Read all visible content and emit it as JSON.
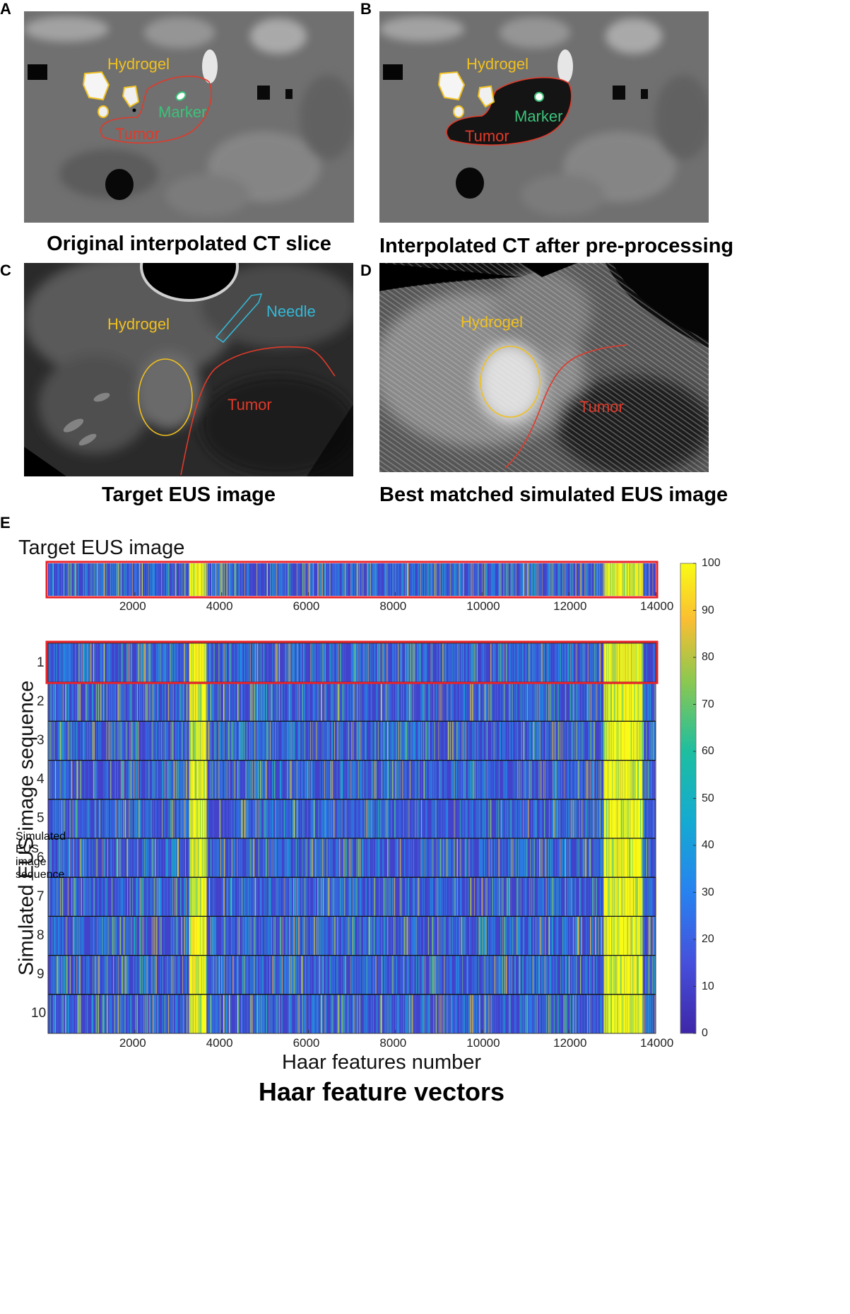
{
  "panels": {
    "A": {
      "letter": "A",
      "caption": "Original interpolated CT slice",
      "labels": {
        "hydrogel": "Hydrogel",
        "marker": "Marker",
        "tumor": "Tumor"
      }
    },
    "B": {
      "letter": "B",
      "caption": "Interpolated CT after pre-processing",
      "labels": {
        "hydrogel": "Hydrogel",
        "marker": "Marker",
        "tumor": "Tumor"
      }
    },
    "C": {
      "letter": "C",
      "caption": "Target EUS image",
      "labels": {
        "hydrogel": "Hydrogel",
        "needle": "Needle",
        "tumor": "Tumor"
      }
    },
    "D": {
      "letter": "D",
      "caption": "Best matched simulated EUS image",
      "labels": {
        "hydrogel": "Hydrogel",
        "tumor": "Tumor"
      }
    },
    "E": {
      "letter": "E",
      "caption": "Haar feature vectors"
    }
  },
  "colors": {
    "hydrogel": "#f0c020",
    "tumor": "#e03a2a",
    "marker": "#3cc27a",
    "needle": "#33b8d6",
    "highlight": "#e8232a"
  },
  "chart_data": {
    "type": "heatmap",
    "top_title": "Target EUS image",
    "xlabel": "Haar features number",
    "ylabel": "Simulated EUS image sequence",
    "xlim": [
      0,
      14000
    ],
    "x_ticks": [
      "2000",
      "4000",
      "6000",
      "8000",
      "10000",
      "12000",
      "14000"
    ],
    "x_tick_values": [
      2000,
      4000,
      6000,
      8000,
      10000,
      12000,
      14000
    ],
    "rows": [
      "1",
      "2",
      "3",
      "4",
      "5",
      "6",
      "7",
      "8",
      "9",
      "10"
    ],
    "colorbar": {
      "min": 0,
      "max": 100,
      "ticks": [
        "0",
        "10",
        "20",
        "30",
        "40",
        "50",
        "60",
        "70",
        "80",
        "90",
        "100"
      ]
    },
    "high_value_bands": [
      {
        "x_start": 3250,
        "x_end": 3650,
        "value": 100
      },
      {
        "x_start": 12800,
        "x_end": 13700,
        "value": 100
      }
    ],
    "background_value": 10,
    "best_match_row": "1"
  }
}
